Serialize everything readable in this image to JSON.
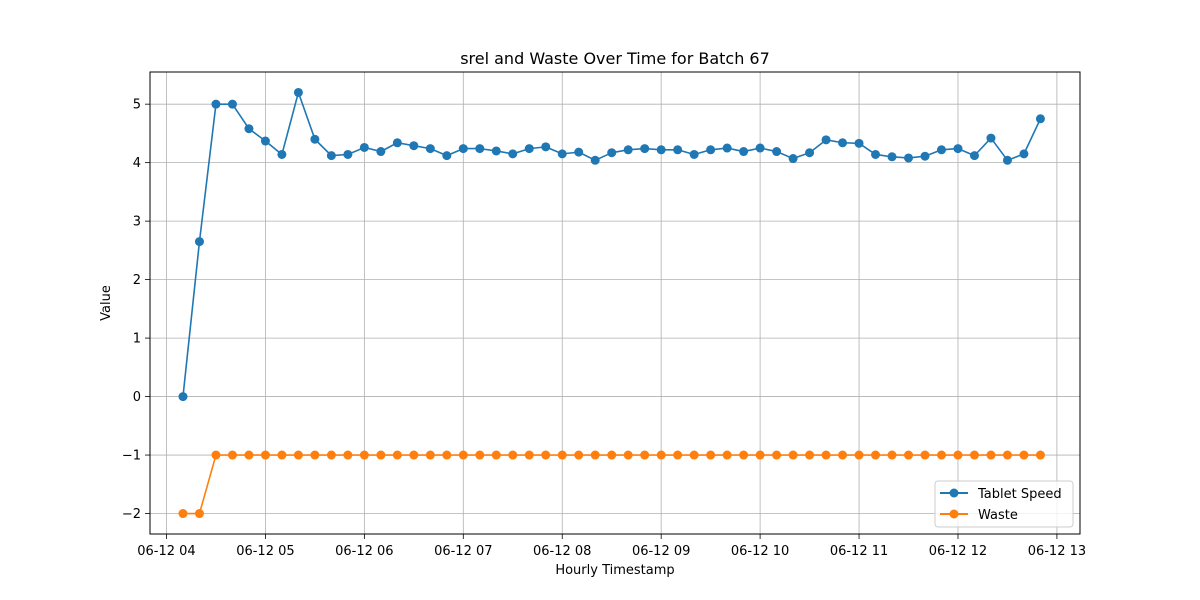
{
  "chart_data": {
    "type": "line",
    "title": "srel and Waste Over Time for Batch 67",
    "xlabel": "Hourly Timestamp",
    "ylabel": "Value",
    "x_unit": "time (2024-06-12, hourly axis, ~10-minute samples)",
    "x_ticks": [
      "06-12 04",
      "06-12 05",
      "06-12 06",
      "06-12 07",
      "06-12 08",
      "06-12 09",
      "06-12 10",
      "06-12 11",
      "06-12 12",
      "06-12 13"
    ],
    "xlim": [
      "06-12 03:50",
      "06-12 13:14"
    ],
    "y_ticks": [
      -2,
      -1,
      0,
      1,
      2,
      3,
      4,
      5
    ],
    "ylim": [
      -2.35,
      5.55
    ],
    "grid": true,
    "legend_position": "lower right",
    "x": [
      "06-12 04:10",
      "06-12 04:20",
      "06-12 04:30",
      "06-12 04:40",
      "06-12 04:50",
      "06-12 05:00",
      "06-12 05:10",
      "06-12 05:20",
      "06-12 05:30",
      "06-12 05:40",
      "06-12 05:50",
      "06-12 06:00",
      "06-12 06:10",
      "06-12 06:20",
      "06-12 06:30",
      "06-12 06:40",
      "06-12 06:50",
      "06-12 07:00",
      "06-12 07:10",
      "06-12 07:20",
      "06-12 07:30",
      "06-12 07:40",
      "06-12 07:50",
      "06-12 08:00",
      "06-12 08:10",
      "06-12 08:20",
      "06-12 08:30",
      "06-12 08:40",
      "06-12 08:50",
      "06-12 09:00",
      "06-12 09:10",
      "06-12 09:20",
      "06-12 09:30",
      "06-12 09:40",
      "06-12 09:50",
      "06-12 10:00",
      "06-12 10:10",
      "06-12 10:20",
      "06-12 10:30",
      "06-12 10:40",
      "06-12 10:50",
      "06-12 11:00",
      "06-12 11:10",
      "06-12 11:20",
      "06-12 11:30",
      "06-12 11:40",
      "06-12 11:50",
      "06-12 12:00",
      "06-12 12:10",
      "06-12 12:20",
      "06-12 12:30",
      "06-12 12:40",
      "06-12 12:50"
    ],
    "series": [
      {
        "name": "Tablet Speed",
        "color": "#1f77b4",
        "values": [
          0.0,
          2.65,
          5.0,
          5.0,
          4.58,
          4.37,
          4.14,
          5.2,
          4.4,
          4.12,
          4.14,
          4.26,
          4.19,
          4.34,
          4.29,
          4.24,
          4.12,
          4.24,
          4.24,
          4.2,
          4.15,
          4.24,
          4.27,
          4.15,
          4.18,
          4.04,
          4.17,
          4.22,
          4.24,
          4.22,
          4.22,
          4.14,
          4.22,
          4.25,
          4.19,
          4.25,
          4.19,
          4.07,
          4.17,
          4.39,
          4.34,
          4.33,
          4.14,
          4.1,
          4.08,
          4.11,
          4.22,
          4.24,
          4.12,
          4.42,
          4.04,
          4.15,
          4.75
        ]
      },
      {
        "name": "Waste",
        "color": "#ff7f0e",
        "values": [
          -2,
          -2,
          -1,
          -1,
          -1,
          -1,
          -1,
          -1,
          -1,
          -1,
          -1,
          -1,
          -1,
          -1,
          -1,
          -1,
          -1,
          -1,
          -1,
          -1,
          -1,
          -1,
          -1,
          -1,
          -1,
          -1,
          -1,
          -1,
          -1,
          -1,
          -1,
          -1,
          -1,
          -1,
          -1,
          -1,
          -1,
          -1,
          -1,
          -1,
          -1,
          -1,
          -1,
          -1,
          -1,
          -1,
          -1,
          -1,
          -1,
          -1,
          -1,
          -1,
          -1
        ]
      }
    ]
  }
}
